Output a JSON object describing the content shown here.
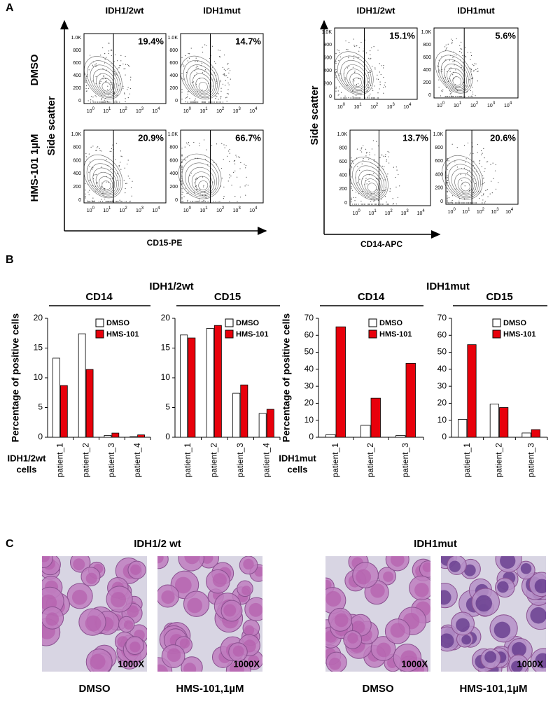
{
  "panel_labels": [
    "A",
    "B",
    "C"
  ],
  "flow_axes": {
    "y_ticks": [
      "1.0K",
      "800",
      "600",
      "400",
      "200",
      "0"
    ],
    "x_ticks": [
      {
        "base": "10",
        "exp": "0"
      },
      {
        "base": "10",
        "exp": "1"
      },
      {
        "base": "10",
        "exp": "2"
      },
      {
        "base": "10",
        "exp": "3"
      },
      {
        "base": "10",
        "exp": "4"
      }
    ]
  },
  "flow": [
    {
      "headers": [
        "IDH1/2wt",
        "IDH1mut"
      ],
      "rows": [
        "DMSO",
        "HMS-101 1µM"
      ],
      "percents": [
        [
          "19.4%",
          "14.7%"
        ],
        [
          "20.9%",
          "66.7%"
        ]
      ],
      "x_label": "CD15-PE",
      "y_label": "Side scatter"
    },
    {
      "headers": [
        "IDH1/2wt",
        "IDH1mut"
      ],
      "percents": [
        [
          "15.1%",
          "5.6%"
        ],
        [
          "13.7%",
          "20.6%"
        ]
      ],
      "x_label": "CD14-APC",
      "y_label": "Side scatter"
    }
  ],
  "panel_b": {
    "group_titles": [
      "IDH1/2wt",
      "IDH1mut"
    ]
  },
  "chart_data": [
    {
      "type": "bar",
      "title": "CD14",
      "ylabel": "Percentage of positive cells",
      "xlabel": [
        "IDH1/2wt",
        "cells"
      ],
      "categories": [
        "patient_1",
        "patient_2",
        "patient_3",
        "patient_4"
      ],
      "series": [
        {
          "name": "DMSO",
          "color": "#ffffff",
          "values": [
            13.3,
            17.4,
            0.3,
            0.1
          ]
        },
        {
          "name": "HMS-101",
          "color": "#e8000b",
          "values": [
            8.7,
            11.4,
            0.7,
            0.4
          ]
        }
      ],
      "ylim": [
        0,
        20
      ],
      "yticks": [
        0,
        5,
        10,
        15,
        20
      ]
    },
    {
      "type": "bar",
      "title": "CD15",
      "categories": [
        "patient_1",
        "patient_2",
        "patient_3",
        "patient_4"
      ],
      "series": [
        {
          "name": "DMSO",
          "color": "#ffffff",
          "values": [
            17.2,
            18.3,
            7.4,
            4.0
          ]
        },
        {
          "name": "HMS-101",
          "color": "#e8000b",
          "values": [
            16.7,
            18.8,
            8.8,
            4.7
          ]
        }
      ],
      "ylim": [
        0,
        20
      ],
      "yticks": [
        0,
        5,
        10,
        15,
        20
      ]
    },
    {
      "type": "bar",
      "title": "CD14",
      "ylabel": "Percentage of positive cells",
      "xlabel": [
        "IDH1mut",
        "cells"
      ],
      "categories": [
        "patient_1",
        "patient_2",
        "patient_3"
      ],
      "series": [
        {
          "name": "DMSO",
          "color": "#ffffff",
          "values": [
            1.5,
            7,
            1
          ]
        },
        {
          "name": "HMS-101",
          "color": "#e8000b",
          "values": [
            65,
            23,
            43.5
          ]
        }
      ],
      "ylim": [
        0,
        70
      ],
      "yticks": [
        0,
        10,
        20,
        30,
        40,
        50,
        60,
        70
      ]
    },
    {
      "type": "bar",
      "title": "CD15",
      "categories": [
        "patient_1",
        "patient_2",
        "patient_3"
      ],
      "series": [
        {
          "name": "DMSO",
          "color": "#ffffff",
          "values": [
            10.5,
            19.5,
            2.5
          ]
        },
        {
          "name": "HMS-101",
          "color": "#e8000b",
          "values": [
            54.5,
            17.5,
            4.5
          ]
        }
      ],
      "ylim": [
        0,
        70
      ],
      "yticks": [
        0,
        10,
        20,
        30,
        40,
        50,
        60,
        70
      ]
    }
  ],
  "panel_c": {
    "titles": [
      "IDH1/2 wt",
      "IDH1mut"
    ],
    "magnification": "1000X",
    "captions": [
      "DMSO",
      "HMS-101,1µM",
      "DMSO",
      "HMS-101,1µM"
    ]
  }
}
